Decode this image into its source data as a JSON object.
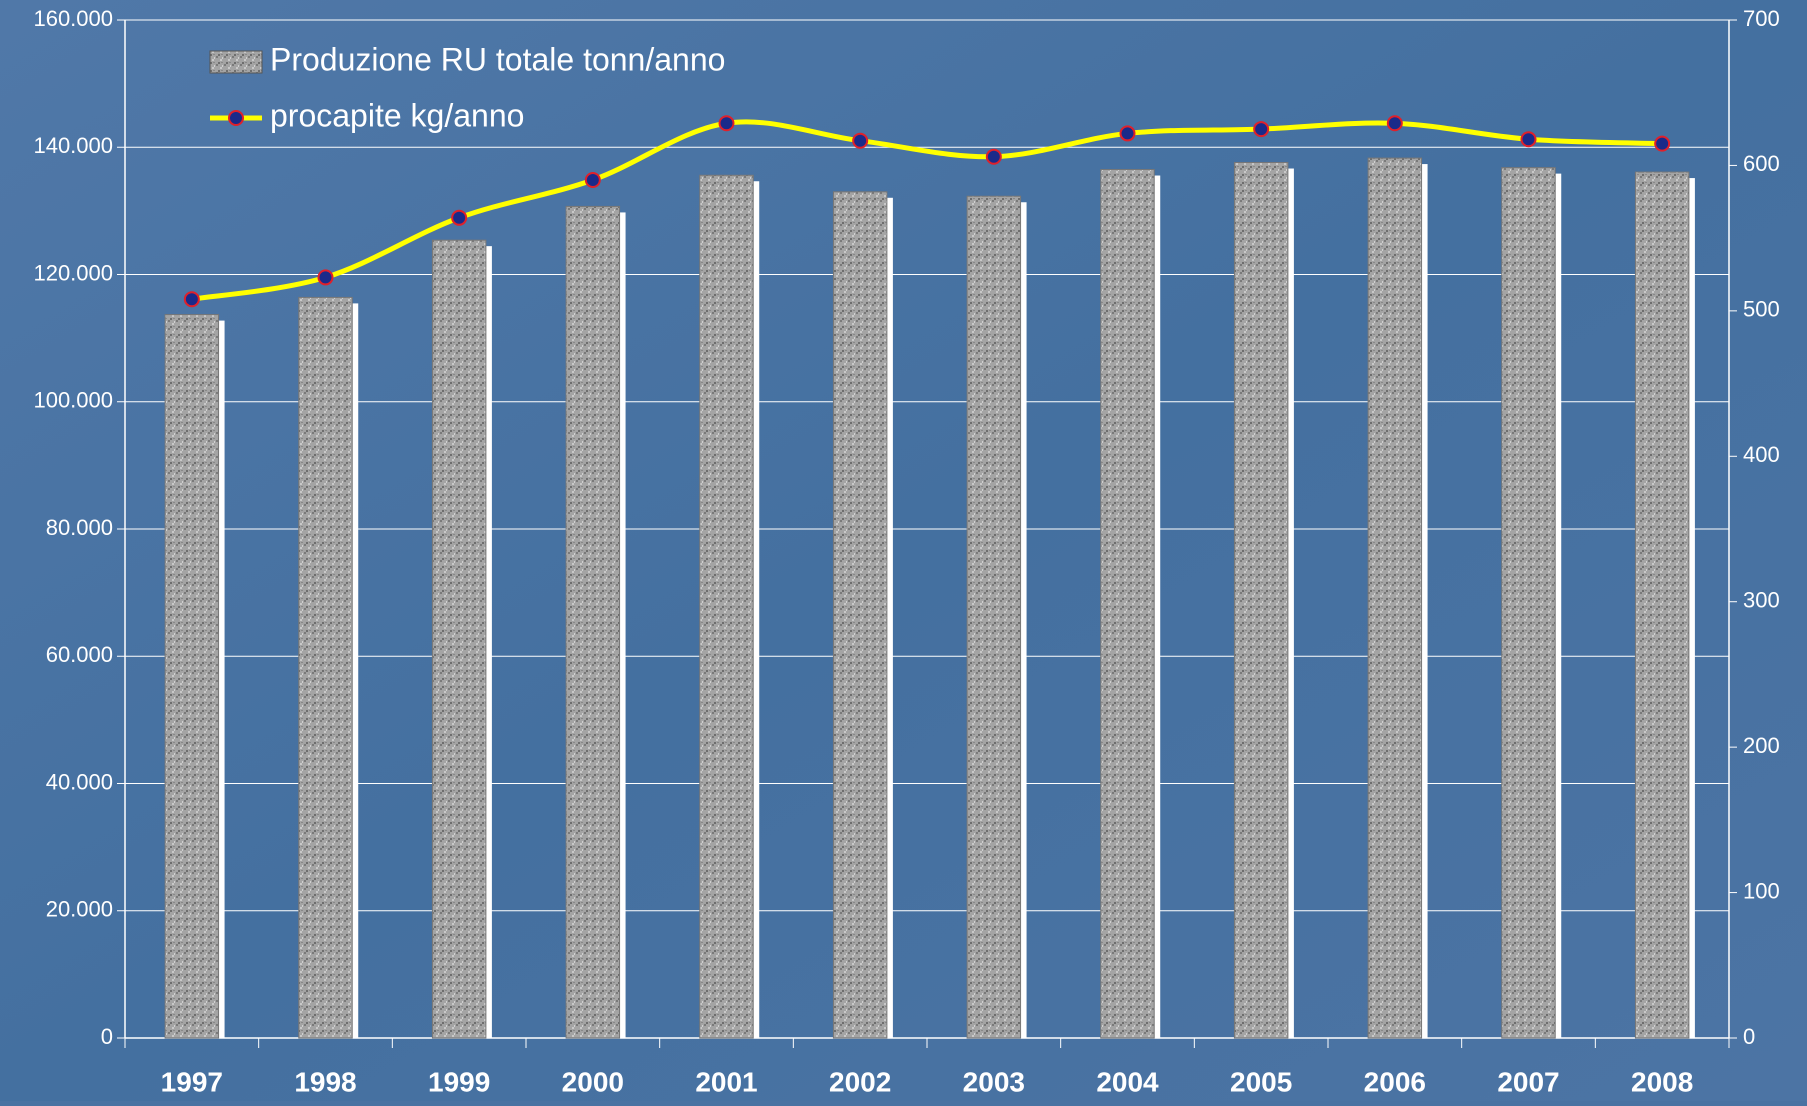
{
  "chart_data": {
    "type": "bar-line",
    "categories": [
      "1997",
      "1998",
      "1999",
      "2000",
      "2001",
      "2002",
      "2003",
      "2004",
      "2005",
      "2006",
      "2007",
      "2008"
    ],
    "series": [
      {
        "name": "Produzione RU totale tonn/anno",
        "type": "bar",
        "color": "#9a9a9a",
        "values": [
          113700,
          116400,
          125400,
          130700,
          135600,
          133000,
          132300,
          136500,
          137600,
          138300,
          136800,
          136100
        ]
      },
      {
        "name": "procapite kg/anno",
        "type": "line",
        "axis": "y2",
        "color": "#ffff00",
        "values": [
          508,
          523,
          564,
          590,
          629,
          617,
          606,
          622,
          625,
          629,
          618,
          615
        ]
      }
    ],
    "ylim": [
      0,
      160000
    ],
    "yticks": [
      {
        "value": 0,
        "label": "0"
      },
      {
        "value": 20000,
        "label": "20.000"
      },
      {
        "value": 40000,
        "label": "40.000"
      },
      {
        "value": 60000,
        "label": "60.000"
      },
      {
        "value": 80000,
        "label": "80.000"
      },
      {
        "value": 100000,
        "label": "100.000"
      },
      {
        "value": 120000,
        "label": "120.000"
      },
      {
        "value": 140000,
        "label": "140.000"
      },
      {
        "value": 160000,
        "label": "160.000"
      }
    ],
    "y2lim": [
      0,
      700
    ],
    "y2ticks": [
      0,
      100,
      200,
      300,
      400,
      500,
      600,
      700
    ],
    "grid": true,
    "legend": "top-left"
  }
}
